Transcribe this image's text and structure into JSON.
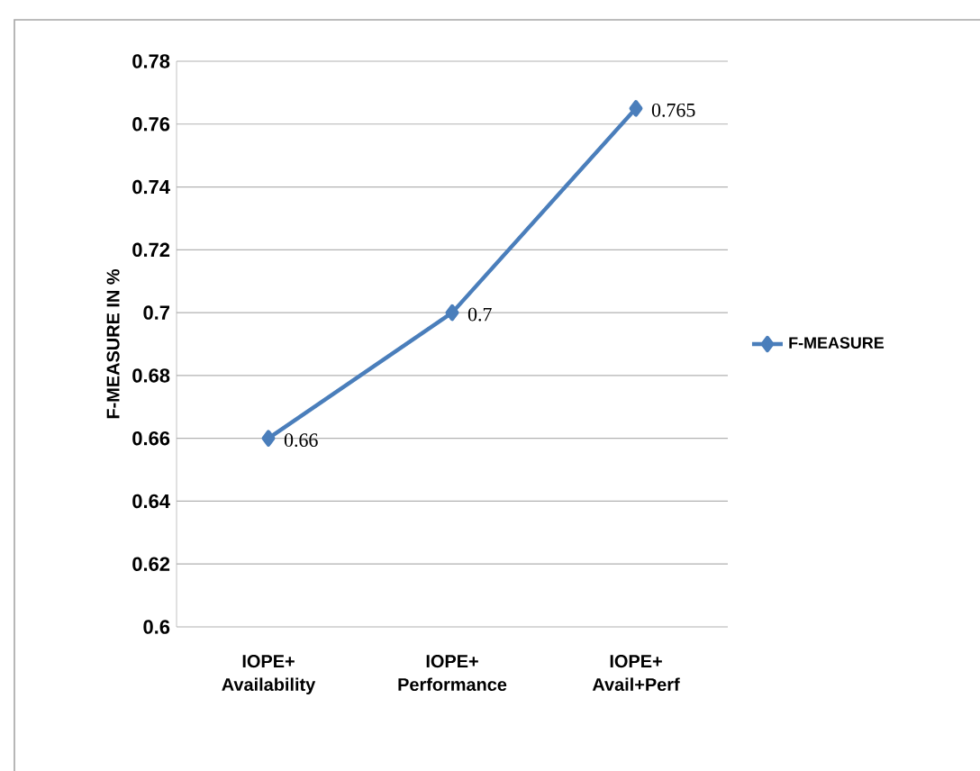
{
  "chart_data": {
    "type": "line",
    "ylabel": "F-MEASURE IN %",
    "categories": [
      "IOPE+ Availability",
      "IOPE+ Performance",
      "IOPE+ Avail+Perf"
    ],
    "series": [
      {
        "name": "F-MEASURE",
        "color": "#4a7ebb",
        "values": [
          0.66,
          0.7,
          0.765
        ]
      }
    ],
    "ylim": [
      0.6,
      0.78
    ],
    "yticks": [
      0.6,
      0.62,
      0.64,
      0.66,
      0.68,
      0.7,
      0.72,
      0.74,
      0.76,
      0.78
    ],
    "grid": "y",
    "legend": "right",
    "marker": "diamond",
    "line_style": "solid",
    "data_labels": true
  }
}
